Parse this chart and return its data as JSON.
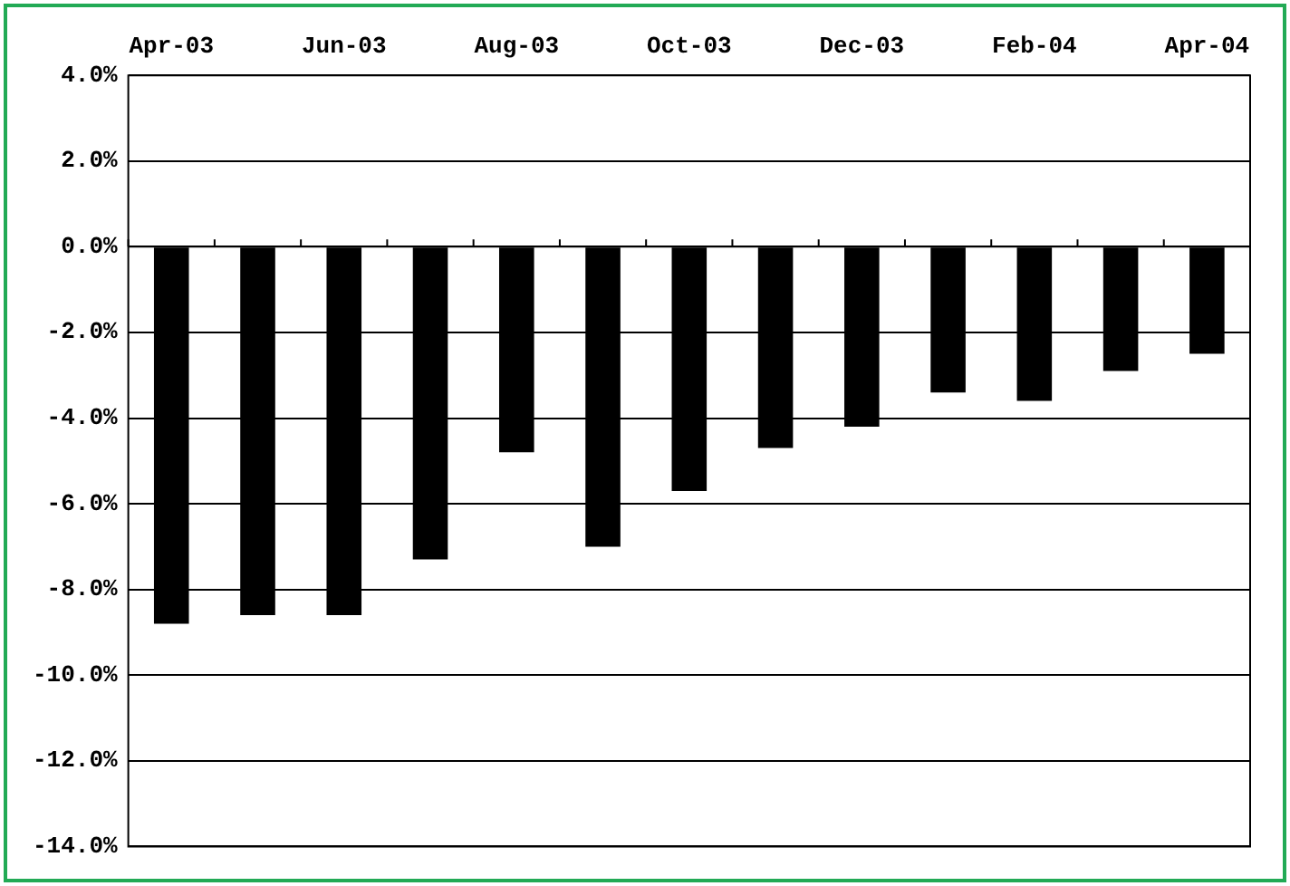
{
  "chart_data": {
    "type": "bar",
    "categories": [
      "Apr-03",
      null,
      "Jun-03",
      null,
      "Aug-03",
      null,
      "Oct-03",
      null,
      "Dec-03",
      null,
      "Feb-04",
      null,
      "Apr-04"
    ],
    "values": [
      -8.8,
      -8.6,
      -8.6,
      -7.3,
      -4.8,
      -7.0,
      -5.7,
      -4.7,
      -4.2,
      -3.4,
      -3.6,
      -2.9,
      -2.5
    ],
    "color": "#000000",
    "ylim": [
      -14,
      4
    ],
    "yticks": [
      {
        "value": -14,
        "label": "-14.0%"
      },
      {
        "value": -12,
        "label": "-12.0%"
      },
      {
        "value": -10,
        "label": "-10.0%"
      },
      {
        "value": -8,
        "label": "-8.0%"
      },
      {
        "value": -6,
        "label": "-6.0%"
      },
      {
        "value": -4,
        "label": "-4.0%"
      },
      {
        "value": -2,
        "label": "-2.0%"
      },
      {
        "value": 0,
        "label": "0.0%"
      },
      {
        "value": 2,
        "label": "2.0%"
      },
      {
        "value": 4,
        "label": "4.0%"
      }
    ],
    "grid": "y",
    "legend": false
  }
}
